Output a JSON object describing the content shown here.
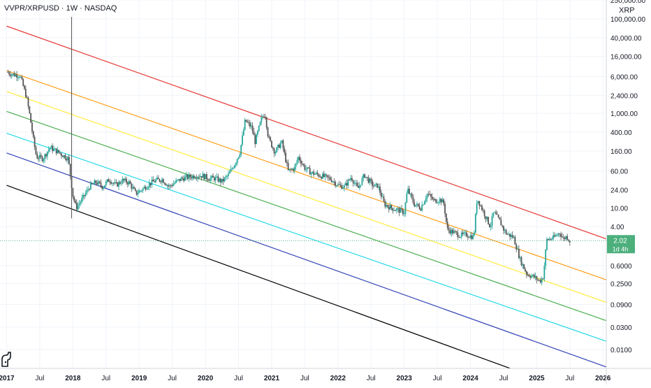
{
  "header": {
    "title": "VVPR/XRPUSD · 1W · NASDAQ",
    "currency": "XRP"
  },
  "logo": {
    "icon": "tradingview-logo-icon"
  },
  "price_badge": {
    "value": "2.02",
    "countdown": "1d 4h",
    "color": "#4caf7c"
  },
  "colors": {
    "up": "#26a69a",
    "down": "#555555",
    "lines": [
      "#e53935",
      "#ff9f1a",
      "#ffeb3b",
      "#4caf50",
      "#26d9e8",
      "#3545b5",
      "#000000"
    ]
  },
  "chart_data": {
    "type": "candlestick",
    "y_scale": "log",
    "ylim": [
      0.004,
      250000
    ],
    "xlim": [
      2016.9,
      2026.05
    ],
    "y_ticks": [
      {
        "v": 250000,
        "label": "250,000.00"
      },
      {
        "v": 100000,
        "label": "100,000.00"
      },
      {
        "v": 40000,
        "label": "40,000.00"
      },
      {
        "v": 16000,
        "label": "16,000.00"
      },
      {
        "v": 6000,
        "label": "6,000.00"
      },
      {
        "v": 2400,
        "label": "2,400.00"
      },
      {
        "v": 1000,
        "label": "1,000.00"
      },
      {
        "v": 400,
        "label": "400.00"
      },
      {
        "v": 160,
        "label": "160.00"
      },
      {
        "v": 60,
        "label": "60.00"
      },
      {
        "v": 24,
        "label": "24.00"
      },
      {
        "v": 10,
        "label": "10.00"
      },
      {
        "v": 4,
        "label": "4.00"
      },
      {
        "v": 0.6,
        "label": "0.6000"
      },
      {
        "v": 0.25,
        "label": "0.2500"
      },
      {
        "v": 0.09,
        "label": "0.0900"
      },
      {
        "v": 0.03,
        "label": "0.0300"
      },
      {
        "v": 0.01,
        "label": "0.0100"
      }
    ],
    "x_ticks": [
      {
        "t": 2017.0,
        "label": "2017",
        "major": true
      },
      {
        "t": 2017.5,
        "label": "Jul",
        "major": false
      },
      {
        "t": 2018.0,
        "label": "2018",
        "major": true
      },
      {
        "t": 2018.5,
        "label": "Jul",
        "major": false
      },
      {
        "t": 2019.0,
        "label": "2019",
        "major": true
      },
      {
        "t": 2019.5,
        "label": "Jul",
        "major": false
      },
      {
        "t": 2020.0,
        "label": "2020",
        "major": true
      },
      {
        "t": 2020.5,
        "label": "Jul",
        "major": false
      },
      {
        "t": 2021.0,
        "label": "2021",
        "major": true
      },
      {
        "t": 2021.5,
        "label": "Jul",
        "major": false
      },
      {
        "t": 2022.0,
        "label": "2022",
        "major": true
      },
      {
        "t": 2022.5,
        "label": "Jul",
        "major": false
      },
      {
        "t": 2023.0,
        "label": "2023",
        "major": true
      },
      {
        "t": 2023.5,
        "label": "Jul",
        "major": false
      },
      {
        "t": 2024.0,
        "label": "2024",
        "major": true
      },
      {
        "t": 2024.5,
        "label": "Jul",
        "major": false
      },
      {
        "t": 2025.0,
        "label": "2025",
        "major": true
      },
      {
        "t": 2025.5,
        "label": "Jul",
        "major": false
      },
      {
        "t": 2026.0,
        "label": "2026",
        "major": true
      }
    ],
    "last_price": 2.02,
    "trend_lines": [
      {
        "color": "#e53935",
        "from": [
          2017.0,
          70000
        ],
        "to": [
          2026.05,
          2.2
        ]
      },
      {
        "color": "#ff9f1a",
        "from": [
          2017.0,
          8000
        ],
        "to": [
          2026.05,
          0.3
        ]
      },
      {
        "color": "#ffeb3b",
        "from": [
          2017.0,
          2900
        ],
        "to": [
          2026.05,
          0.1
        ]
      },
      {
        "color": "#4caf50",
        "from": [
          2017.0,
          1100
        ],
        "to": [
          2026.05,
          0.041
        ]
      },
      {
        "color": "#26d9e8",
        "from": [
          2017.0,
          380
        ],
        "to": [
          2026.05,
          0.015
        ]
      },
      {
        "color": "#3545b5",
        "from": [
          2017.0,
          145
        ],
        "to": [
          2026.05,
          0.0043
        ]
      },
      {
        "color": "#000000",
        "from": [
          2017.0,
          30
        ],
        "to": [
          2024.6,
          0.004
        ]
      }
    ],
    "path": [
      [
        2017.0,
        7500
      ],
      [
        2017.1,
        6600
      ],
      [
        2017.2,
        6400
      ],
      [
        2017.3,
        2200
      ],
      [
        2017.35,
        900
      ],
      [
        2017.4,
        300
      ],
      [
        2017.45,
        120
      ],
      [
        2017.55,
        110
      ],
      [
        2017.65,
        190
      ],
      [
        2017.75,
        160
      ],
      [
        2017.85,
        130
      ],
      [
        2017.93,
        110
      ],
      [
        2018.0,
        18
      ],
      [
        2018.05,
        10
      ],
      [
        2018.15,
        16
      ],
      [
        2018.25,
        28
      ],
      [
        2018.35,
        35
      ],
      [
        2018.45,
        28
      ],
      [
        2018.55,
        40
      ],
      [
        2018.65,
        30
      ],
      [
        2018.75,
        38
      ],
      [
        2018.85,
        34
      ],
      [
        2018.95,
        20
      ],
      [
        2019.05,
        25
      ],
      [
        2019.15,
        32
      ],
      [
        2019.25,
        38
      ],
      [
        2019.35,
        40
      ],
      [
        2019.45,
        28
      ],
      [
        2019.55,
        35
      ],
      [
        2019.65,
        42
      ],
      [
        2019.75,
        45
      ],
      [
        2019.85,
        48
      ],
      [
        2019.95,
        48
      ],
      [
        2020.05,
        42
      ],
      [
        2020.15,
        42
      ],
      [
        2020.25,
        36
      ],
      [
        2020.35,
        50
      ],
      [
        2020.45,
        90
      ],
      [
        2020.52,
        150
      ],
      [
        2020.6,
        700
      ],
      [
        2020.7,
        500
      ],
      [
        2020.75,
        250
      ],
      [
        2020.85,
        800
      ],
      [
        2020.9,
        1000
      ],
      [
        2020.95,
        300
      ],
      [
        2021.05,
        150
      ],
      [
        2021.15,
        250
      ],
      [
        2021.25,
        60
      ],
      [
        2021.35,
        70
      ],
      [
        2021.4,
        120
      ],
      [
        2021.5,
        70
      ],
      [
        2021.6,
        55
      ],
      [
        2021.7,
        50
      ],
      [
        2021.8,
        45
      ],
      [
        2021.9,
        40
      ],
      [
        2022.0,
        30
      ],
      [
        2022.1,
        28
      ],
      [
        2022.2,
        45
      ],
      [
        2022.3,
        25
      ],
      [
        2022.4,
        50
      ],
      [
        2022.45,
        40
      ],
      [
        2022.55,
        28
      ],
      [
        2022.6,
        30
      ],
      [
        2022.7,
        12
      ],
      [
        2022.8,
        10
      ],
      [
        2022.9,
        9
      ],
      [
        2023.0,
        8
      ],
      [
        2023.05,
        25
      ],
      [
        2023.15,
        12
      ],
      [
        2023.25,
        10
      ],
      [
        2023.35,
        20
      ],
      [
        2023.45,
        14
      ],
      [
        2023.55,
        15
      ],
      [
        2023.6,
        12
      ],
      [
        2023.65,
        3.5
      ],
      [
        2023.75,
        3
      ],
      [
        2023.85,
        2.6
      ],
      [
        2023.95,
        2.7
      ],
      [
        2024.05,
        2.4
      ],
      [
        2024.1,
        16
      ],
      [
        2024.2,
        8
      ],
      [
        2024.3,
        4
      ],
      [
        2024.35,
        8
      ],
      [
        2024.45,
        5
      ],
      [
        2024.5,
        3.5
      ],
      [
        2024.55,
        2.8
      ],
      [
        2024.65,
        2.4
      ],
      [
        2024.75,
        0.8
      ],
      [
        2024.85,
        0.4
      ],
      [
        2024.95,
        0.35
      ],
      [
        2025.05,
        0.28
      ],
      [
        2025.1,
        0.35
      ],
      [
        2025.15,
        2.1
      ],
      [
        2025.25,
        2.3
      ],
      [
        2025.35,
        3.0
      ],
      [
        2025.4,
        2.2
      ],
      [
        2025.45,
        2.5
      ],
      [
        2025.5,
        2.02
      ]
    ],
    "spike": {
      "t": 2017.98,
      "high": 110000,
      "low": 6
    }
  }
}
